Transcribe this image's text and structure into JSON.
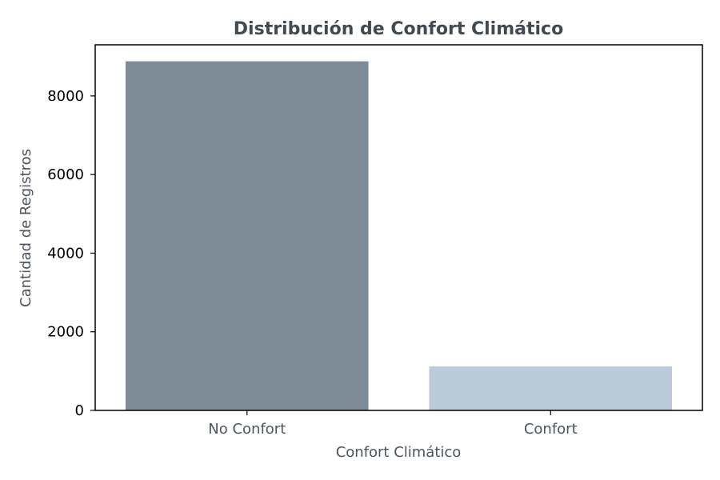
{
  "colors": {
    "title": "#3f4a54",
    "axis_label": "#4a5560",
    "x_tick_label": "#4a5560",
    "y_tick_label": "#000000",
    "axes": "#000000",
    "background": "#ffffff"
  },
  "chart_data": {
    "type": "bar",
    "title": "Distribución de Confort Climático",
    "xlabel": "Confort Climático",
    "ylabel": "Cantidad de Registros",
    "categories": [
      "No Confort",
      "Confort"
    ],
    "values": [
      8880,
      1120
    ],
    "bar_colors": [
      "#808c95",
      "#bbcbd9"
    ],
    "ylim": [
      0,
      9300
    ],
    "yticks": [
      0,
      2000,
      4000,
      6000,
      8000
    ],
    "ytick_labels": [
      "0",
      "2000",
      "4000",
      "6000",
      "8000"
    ],
    "grid": false,
    "legend": "none"
  }
}
